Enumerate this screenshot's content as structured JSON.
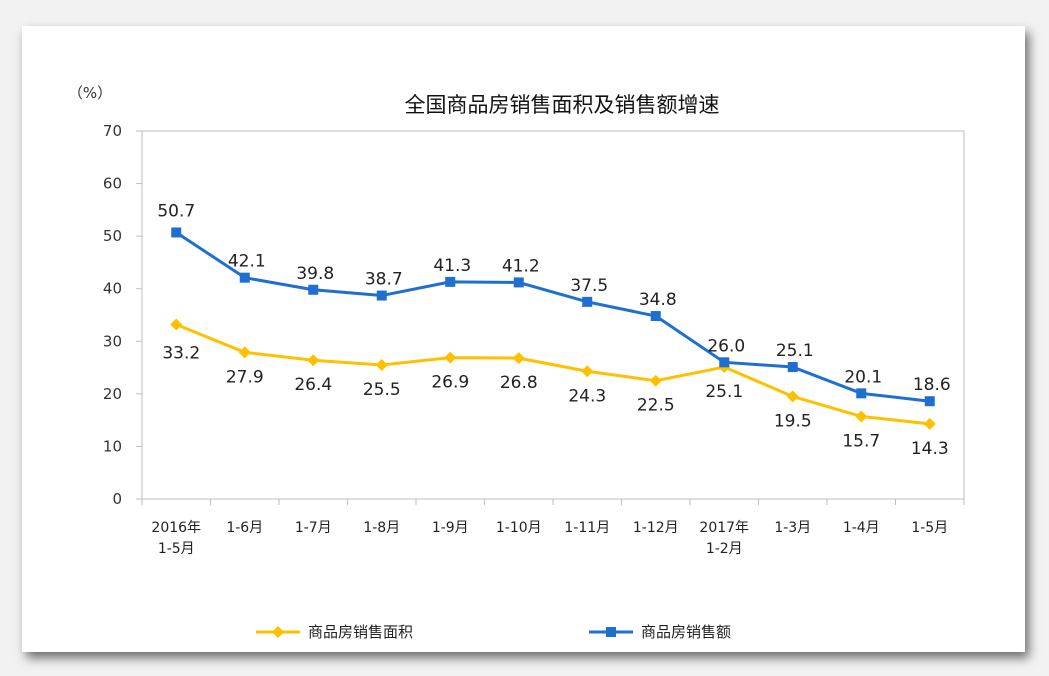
{
  "chart_data": {
    "type": "line",
    "title": "全国商品房销售面积及销售额增速",
    "ylabel": "（%）",
    "xlabel": "",
    "ylim": [
      0,
      70
    ],
    "yticks": [
      0,
      10,
      20,
      30,
      40,
      50,
      60,
      70
    ],
    "grid": false,
    "legend_position": "bottom",
    "categories": [
      [
        "2016年",
        "1-5月"
      ],
      [
        "1-6月"
      ],
      [
        "1-7月"
      ],
      [
        "1-8月"
      ],
      [
        "1-9月"
      ],
      [
        "1-10月"
      ],
      [
        "1-11月"
      ],
      [
        "1-12月"
      ],
      [
        "2017年",
        "1-2月"
      ],
      [
        "1-3月"
      ],
      [
        "1-4月"
      ],
      [
        "1-5月"
      ]
    ],
    "series": [
      {
        "name": "商品房销售面积",
        "color": "#FFC000",
        "marker": "diamond",
        "values": [
          33.2,
          27.9,
          26.4,
          25.5,
          26.9,
          26.8,
          24.3,
          22.5,
          25.1,
          19.5,
          15.7,
          14.3
        ],
        "labels": [
          "33.2",
          "27.9",
          "26.4",
          "25.5",
          "26.9",
          "26.8",
          "24.3",
          "22.5",
          "25.1",
          "19.5",
          "15.7",
          "14.3"
        ]
      },
      {
        "name": "商品房销售额",
        "color": "#1F6FD0",
        "marker": "square",
        "values": [
          50.7,
          42.1,
          39.8,
          38.7,
          41.3,
          41.2,
          37.5,
          34.8,
          26.0,
          25.1,
          20.1,
          18.6
        ],
        "labels": [
          "50.7",
          "42.1",
          "39.8",
          "38.7",
          "41.3",
          "41.2",
          "37.5",
          "34.8",
          "26.0",
          "25.1",
          "20.1",
          "18.6"
        ]
      }
    ]
  }
}
